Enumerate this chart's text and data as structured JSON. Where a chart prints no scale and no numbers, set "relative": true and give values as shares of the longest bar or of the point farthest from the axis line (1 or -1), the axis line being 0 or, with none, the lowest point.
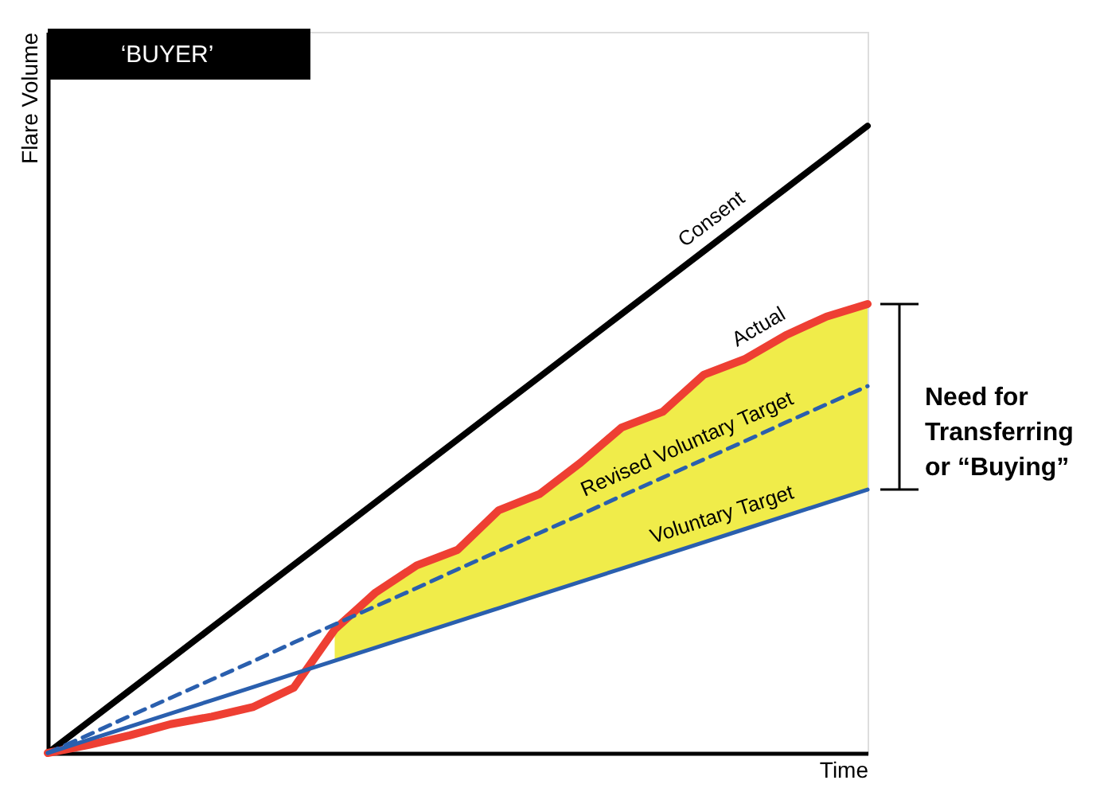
{
  "chart_data": {
    "type": "line",
    "title": "‘BUYER’",
    "xlabel": "Time",
    "ylabel": "Flare Volume",
    "relative": true,
    "grid": false,
    "marker": "none",
    "categories": [
      null,
      null,
      null,
      null,
      null,
      null,
      null,
      null,
      null,
      null,
      null,
      null,
      null,
      null,
      null,
      null,
      null,
      null,
      null,
      null,
      null
    ],
    "series": [
      {
        "name": "Consent",
        "color": "#000000",
        "values": [
          0,
          0.05,
          0.1,
          0.15,
          0.2,
          0.25,
          0.3,
          0.35,
          0.4,
          0.45,
          0.5,
          0.55,
          0.6,
          0.65,
          0.7,
          0.75,
          0.8,
          0.85,
          0.9,
          0.95,
          1
        ]
      },
      {
        "name": "Actual",
        "color": "#ee3f33",
        "values": [
          0,
          0.013,
          0.028,
          0.046,
          0.058,
          0.073,
          0.104,
          0.197,
          0.256,
          0.299,
          0.324,
          0.387,
          0.413,
          0.463,
          0.519,
          0.544,
          0.603,
          0.628,
          0.666,
          0.696,
          0.716
        ],
        "lower": [
          null,
          null,
          null,
          null,
          null,
          null,
          null,
          0.147,
          0.168,
          0.189,
          0.21,
          0.231,
          0.252,
          0.273,
          0.294,
          0.315,
          0.336,
          0.357,
          0.378,
          0.399,
          0.42
        ],
        "upper": [
          null,
          null,
          null,
          null,
          null,
          null,
          null,
          0.197,
          0.256,
          0.299,
          0.324,
          0.387,
          0.413,
          0.463,
          0.519,
          0.544,
          0.603,
          0.628,
          0.666,
          0.696,
          0.716
        ]
      },
      {
        "name": "Revised Voluntary Target",
        "color": "#2a5fae",
        "line_style": "dashed",
        "values": [
          0,
          0.029,
          0.059,
          0.088,
          0.117,
          0.146,
          0.176,
          0.205,
          0.234,
          0.263,
          0.293,
          0.322,
          0.351,
          0.38,
          0.41,
          0.439,
          0.468,
          0.497,
          0.527,
          0.556,
          0.585
        ]
      },
      {
        "name": "Voluntary Target",
        "color": "#2a5fae",
        "values": [
          0,
          0.021,
          0.042,
          0.063,
          0.084,
          0.105,
          0.126,
          0.147,
          0.168,
          0.189,
          0.21,
          0.231,
          0.252,
          0.273,
          0.294,
          0.315,
          0.336,
          0.357,
          0.378,
          0.399,
          0.42
        ]
      }
    ],
    "annotations": [
      "Need for\nTransferring\nor “Buying”"
    ]
  }
}
